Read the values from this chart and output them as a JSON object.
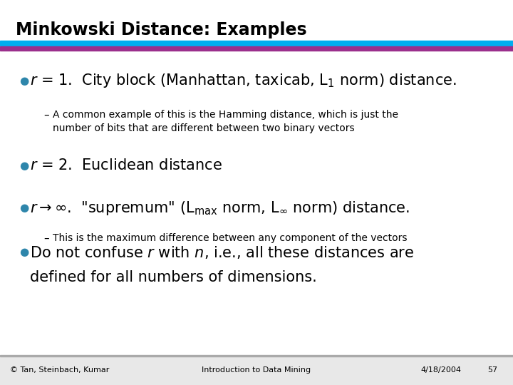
{
  "title": "Minkowski Distance: Examples",
  "bar1_color": "#00AEEF",
  "bar2_color": "#9B2F8C",
  "bullet_color": "#2E86AB",
  "text_color": "#000000",
  "bg_color": "#ffffff",
  "footer_left": "© Tan, Steinbach, Kumar",
  "footer_center": "Introduction to Data Mining",
  "footer_right": "4/18/2004",
  "footer_page": "57"
}
